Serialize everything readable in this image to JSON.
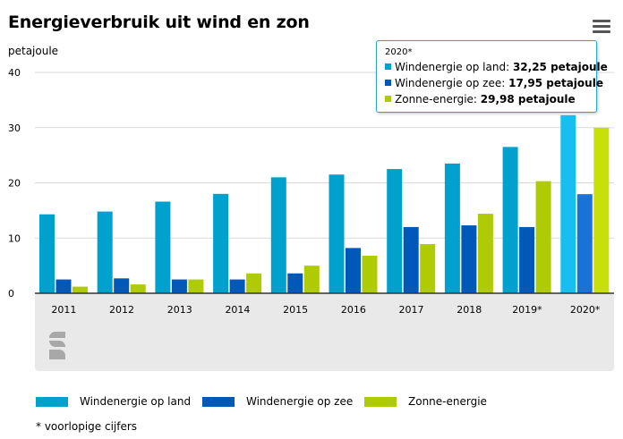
{
  "chart_data": {
    "type": "bar",
    "title": "Energieverbruik uit wind en zon",
    "ylabel": "petajoule",
    "ylim": [
      0,
      40
    ],
    "yticks": [
      0,
      10,
      20,
      30,
      40
    ],
    "grid": true,
    "legend_position": "bottom",
    "categories": [
      "2011",
      "2012",
      "2013",
      "2014",
      "2015",
      "2016",
      "2017",
      "2018",
      "2019*",
      "2020*"
    ],
    "series": [
      {
        "name": "Windenergie op land",
        "color": "#00a1cd",
        "values": [
          14.3,
          14.8,
          16.6,
          18.0,
          21.0,
          21.5,
          22.5,
          23.5,
          26.5,
          32.25
        ]
      },
      {
        "name": "Windenergie op zee",
        "color": "#0058b8",
        "values": [
          2.5,
          2.7,
          2.5,
          2.5,
          3.6,
          8.2,
          12.0,
          12.3,
          12.0,
          17.95
        ]
      },
      {
        "name": "Zonne-energie",
        "color": "#afcb05",
        "values": [
          1.2,
          1.6,
          2.5,
          3.6,
          5.0,
          6.8,
          8.9,
          14.4,
          20.3,
          29.98
        ]
      }
    ],
    "highlight_category": "2020*",
    "highlight_colors": [
      "#17bff0",
      "#1a72d6",
      "#c8e00a"
    ],
    "footnote": "* voorlopige cijfers"
  },
  "tooltip": {
    "heading": "2020*",
    "rows": [
      {
        "label": "Windenergie op land: ",
        "value": "32,25 petajoule",
        "color": "#00a1cd"
      },
      {
        "label": "Windenergie op zee: ",
        "value": "17,95 petajoule",
        "color": "#0058b8"
      },
      {
        "label": "Zonne-energie: ",
        "value": "29,98 petajoule",
        "color": "#afcb05"
      }
    ]
  },
  "colors": {
    "axis_band": "#e9e9e9",
    "grid": "#d9d9d9",
    "axis_line": "#333333",
    "logo": "#a8a8a8",
    "tooltip_border": "#2aa6d6"
  },
  "icons": {
    "menu": "hamburger-menu-icon",
    "logo": "cbs-logo-icon"
  }
}
